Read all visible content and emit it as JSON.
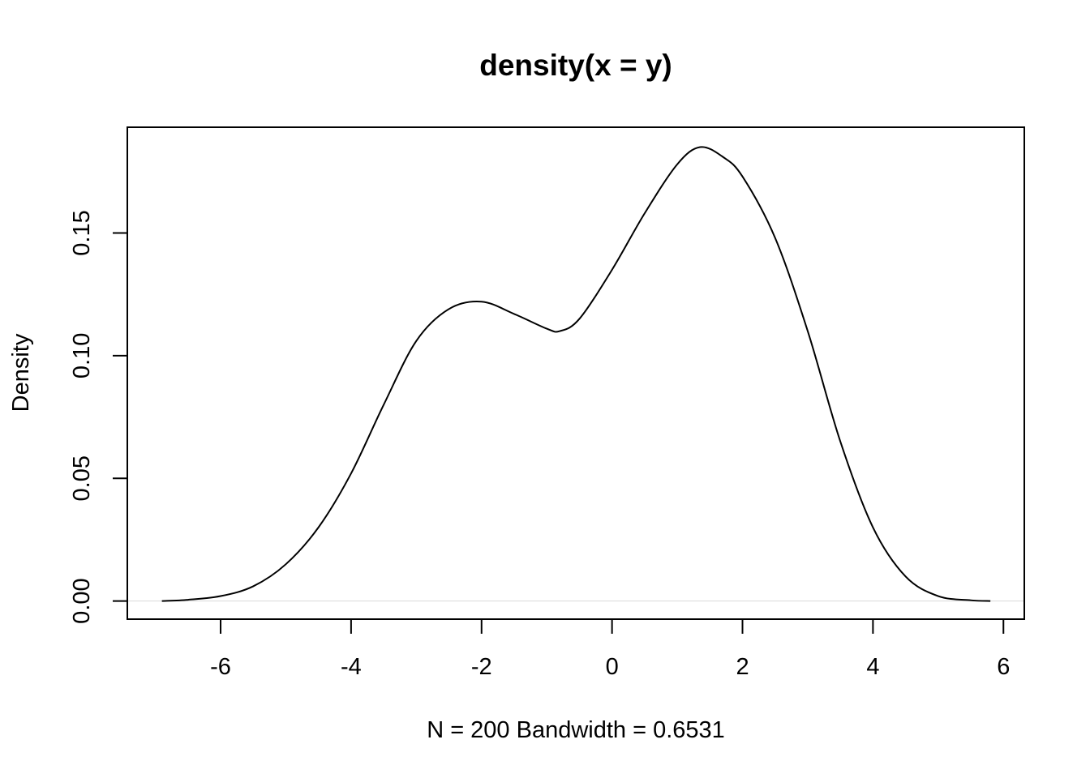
{
  "chart_data": {
    "type": "line",
    "title": "density(x = y)",
    "xlabel": "N = 200   Bandwidth = 0.6531",
    "ylabel": "Density",
    "xlim": [
      -7.43,
      6.32
    ],
    "ylim": [
      -0.0074,
      0.1931
    ],
    "xticks": [
      -6,
      -4,
      -2,
      0,
      2,
      4,
      6
    ],
    "yticks": [
      0.0,
      0.05,
      0.1,
      0.15
    ],
    "xtick_labels": [
      "-6",
      "-4",
      "-2",
      "0",
      "2",
      "4",
      "6"
    ],
    "ytick_labels": [
      "0.00",
      "0.05",
      "0.10",
      "0.15"
    ],
    "grid": false,
    "baseline": 0,
    "series": [
      {
        "color": "#000000",
        "x": [
          -6.9,
          -6.5,
          -6.0,
          -5.5,
          -5.0,
          -4.5,
          -4.0,
          -3.5,
          -3.0,
          -2.5,
          -2.0,
          -1.5,
          -1.0,
          -0.8,
          -0.5,
          0.0,
          0.5,
          1.0,
          1.35,
          1.7,
          2.0,
          2.5,
          3.0,
          3.5,
          4.0,
          4.5,
          5.0,
          5.5,
          5.8
        ],
        "y": [
          0.0,
          0.0005,
          0.002,
          0.006,
          0.015,
          0.03,
          0.052,
          0.08,
          0.106,
          0.119,
          0.122,
          0.117,
          0.111,
          0.11,
          0.115,
          0.135,
          0.158,
          0.178,
          0.185,
          0.181,
          0.173,
          0.148,
          0.11,
          0.065,
          0.03,
          0.01,
          0.002,
          0.0003,
          0.0
        ]
      }
    ]
  }
}
